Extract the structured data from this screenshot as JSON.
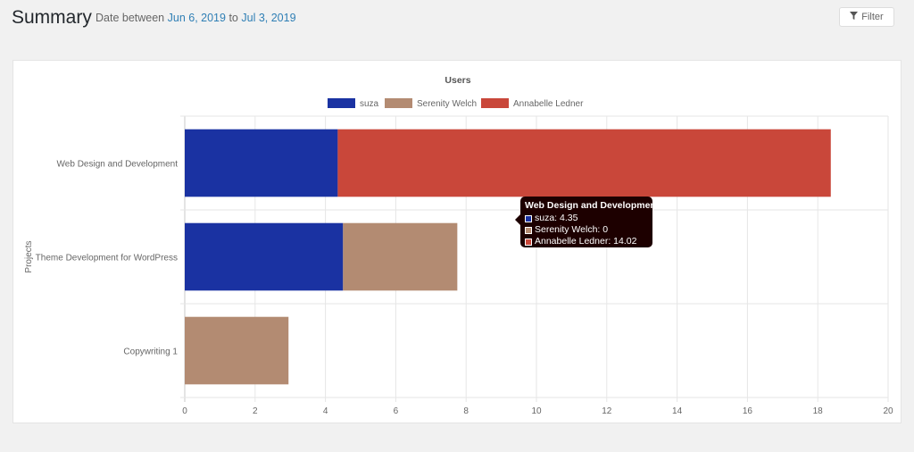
{
  "header": {
    "title": "Summary",
    "date_prefix": "Date between",
    "date_start": "Jun 6, 2019",
    "date_to": "to",
    "date_end": "Jul 3, 2019",
    "filter_label": "Filter",
    "filter_icon": "filter-icon"
  },
  "colors": {
    "suza": "#1a32a2",
    "serenity": "#b38b72",
    "annabelle": "#c9473a",
    "link": "#2f7fb5"
  },
  "chart_data": {
    "type": "bar",
    "orientation": "horizontal",
    "stacked": true,
    "title": "Users",
    "ylabel": "Projects",
    "xlabel": "",
    "categories": [
      "Web Design and Development",
      "Theme Development for WordPress",
      "Copywriting 1"
    ],
    "series": [
      {
        "name": "suza",
        "color": "#1a32a2",
        "values": [
          4.35,
          4.5,
          0
        ]
      },
      {
        "name": "Serenity Welch",
        "color": "#b38b72",
        "values": [
          0,
          3.25,
          2.95
        ]
      },
      {
        "name": "Annabelle Ledner",
        "color": "#c9473a",
        "values": [
          14.02,
          0,
          0
        ]
      }
    ],
    "xlim": [
      0,
      20
    ],
    "xticks": [
      "0",
      "2",
      "4",
      "6",
      "8",
      "10",
      "12",
      "14",
      "16",
      "18",
      "20"
    ],
    "grid": true,
    "legend": "top"
  },
  "tooltip": {
    "title": "Web Design and Development",
    "rows": [
      "suza: 4.35",
      "Serenity Welch: 0",
      "Annabelle Ledner: 14.02"
    ]
  }
}
